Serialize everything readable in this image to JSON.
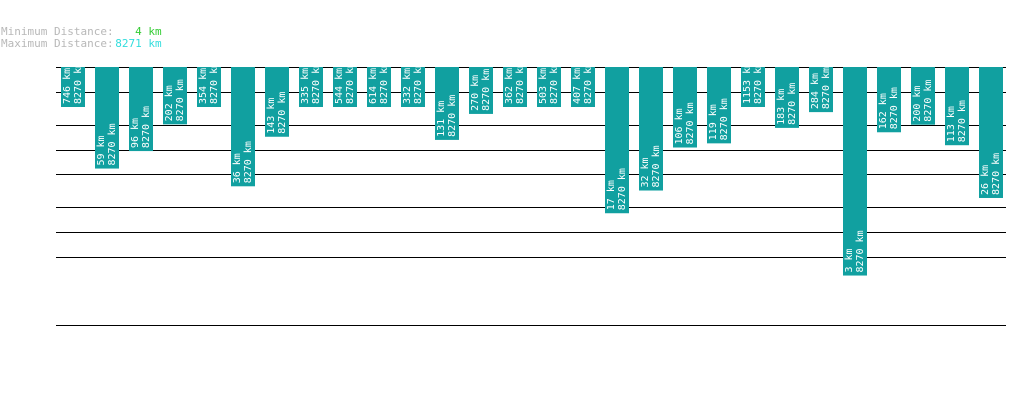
{
  "header": {
    "min_label": "Minimum Distance:",
    "min_value": "4 km",
    "max_label": "Maximum Distance:",
    "max_value": "8271 km"
  },
  "colors": {
    "bar": "#11a0a0",
    "gridline": "#000000",
    "min_value": "#33cc33",
    "max_value": "#33dddd",
    "label": "#b8b8b8",
    "bar_text": "#ffffff"
  },
  "chart_data": {
    "type": "bar",
    "orientation": "vertical",
    "direction": "downward",
    "series": [
      {
        "values": [
          746,
          59,
          96,
          202,
          354,
          36,
          143,
          335,
          544,
          614,
          332,
          131,
          270,
          362,
          503,
          407,
          17,
          32,
          106,
          119,
          1153,
          183,
          284,
          3,
          162,
          200,
          113,
          26
        ],
        "value_labels": [
          "746 km",
          "59 km",
          "96 km",
          "202 km",
          "354 km",
          "36 km",
          "143 km",
          "335 km",
          "544 km",
          "614 km",
          "332 km",
          "131 km",
          "270 km",
          "362 km",
          "503 km",
          "407 km",
          "17 km",
          "32 km",
          "106 km",
          "119 km",
          "1153 km",
          "183 km",
          "284 km",
          "3 km",
          "162 km",
          "200 km",
          "113 km",
          "26 km"
        ],
        "secondary_labels": [
          "8270 km",
          "8270 km",
          "8270 km",
          "8270 km",
          "8270 km",
          "8270 km",
          "8270 km",
          "8270 km",
          "8270 km",
          "8270 km",
          "8270 km",
          "8270 km",
          "8270 km",
          "8270 km",
          "8270 km",
          "8270 km",
          "8270 km",
          "8270 km",
          "8270 km",
          "8270 km",
          "8270 km",
          "8270 km",
          "8270 km",
          "8270 km",
          "8270 km",
          "8270 km",
          "8270 km",
          "8270 km"
        ]
      }
    ],
    "gridlines_km": [
      1000,
      500,
      200,
      100,
      50,
      20,
      10,
      5
    ],
    "scale": "logarithmic",
    "grid": true,
    "legend": "none"
  }
}
